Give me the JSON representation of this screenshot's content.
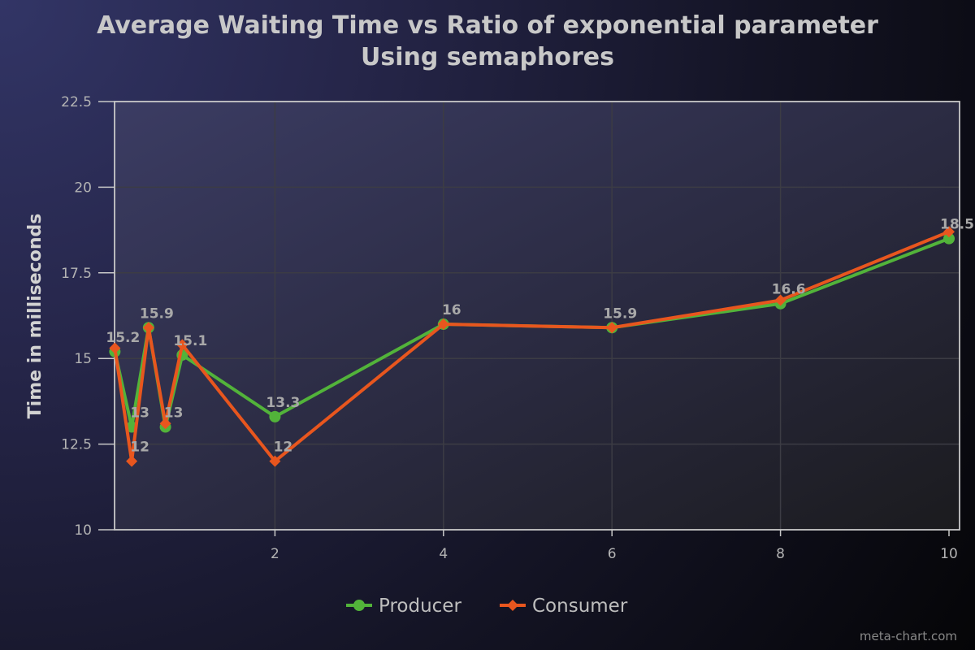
{
  "chart_data": {
    "type": "line",
    "title": "Average Waiting Time vs Ratio of exponential parameter",
    "subtitle": "Using semaphores",
    "xlabel": "",
    "ylabel": "Time in milliseconds",
    "xlim": [
      0,
      10
    ],
    "ylim": [
      10,
      22.5
    ],
    "xticks": [
      2,
      4,
      6,
      8,
      10
    ],
    "yticks": [
      10,
      12.5,
      15,
      17.5,
      20,
      22.5
    ],
    "grid": true,
    "legend_position": "bottom",
    "series": [
      {
        "name": "Producer",
        "color": "#52b33a",
        "marker": "circle",
        "x": [
          0.1,
          0.3,
          0.5,
          0.7,
          0.9,
          2,
          4,
          6,
          8,
          10
        ],
        "y": [
          15.2,
          13,
          15.9,
          13,
          15.1,
          13.3,
          16,
          15.9,
          16.6,
          18.5
        ],
        "labels": [
          "15.2",
          "13",
          "15.9",
          "13",
          "15.1",
          "13.3",
          "16",
          "15.9",
          "16.6",
          "18.5"
        ]
      },
      {
        "name": "Consumer",
        "color": "#e8561e",
        "marker": "diamond",
        "x": [
          0.1,
          0.3,
          0.5,
          0.7,
          0.9,
          2,
          4,
          6,
          8,
          10
        ],
        "y": [
          15.3,
          12,
          15.9,
          13.1,
          15.4,
          12,
          16,
          15.9,
          16.7,
          18.7
        ],
        "labels": [
          "",
          "12",
          "",
          "",
          "",
          "12",
          "",
          "",
          "",
          ""
        ]
      }
    ]
  },
  "watermark": "meta-chart.com"
}
